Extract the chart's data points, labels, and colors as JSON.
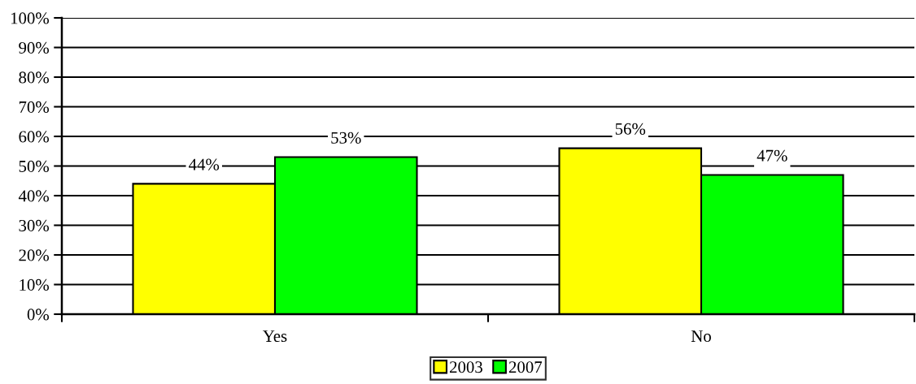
{
  "chart_data": {
    "type": "bar",
    "categories": [
      "Yes",
      "No"
    ],
    "series": [
      {
        "name": "2003",
        "color": "#ffff00",
        "values": [
          44,
          56
        ],
        "value_labels": [
          "44%",
          "56%"
        ]
      },
      {
        "name": "2007",
        "color": "#00ff00",
        "values": [
          53,
          47
        ],
        "value_labels": [
          "53%",
          "47%"
        ]
      }
    ],
    "ylim": [
      0,
      100
    ],
    "yticks": [
      {
        "value": 0,
        "label": "0%"
      },
      {
        "value": 10,
        "label": "10%"
      },
      {
        "value": 20,
        "label": "20%"
      },
      {
        "value": 30,
        "label": "30%"
      },
      {
        "value": 40,
        "label": "40%"
      },
      {
        "value": 50,
        "label": "50%"
      },
      {
        "value": 60,
        "label": "60%"
      },
      {
        "value": 70,
        "label": "70%"
      },
      {
        "value": 80,
        "label": "80%"
      },
      {
        "value": 90,
        "label": "90%"
      },
      {
        "value": 100,
        "label": "100%"
      }
    ],
    "grid": "y",
    "legend": "bottom"
  }
}
